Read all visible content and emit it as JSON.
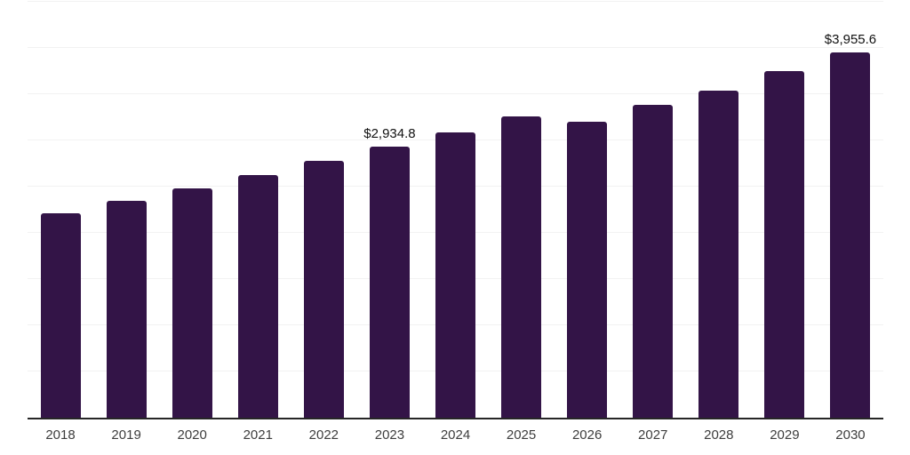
{
  "chart_data": {
    "type": "bar",
    "title": "",
    "xlabel": "",
    "ylabel": "",
    "categories": [
      "2018",
      "2019",
      "2020",
      "2021",
      "2022",
      "2023",
      "2024",
      "2025",
      "2026",
      "2027",
      "2028",
      "2029",
      "2030"
    ],
    "values": [
      2210,
      2350,
      2480,
      2625,
      2783,
      2934.8,
      3090,
      3262,
      3200,
      3383,
      3543,
      3753,
      3955.6
    ],
    "data_labels": [
      "",
      "",
      "",
      "",
      "",
      "$2,934.8",
      "",
      "",
      "",
      "",
      "",
      "",
      "$3,955.6"
    ],
    "ylim": [
      0,
      4500
    ],
    "gridline_step": 500,
    "grid": "horizontal-only",
    "legend": "none",
    "colors": {
      "bar": "#331447",
      "axis_line": "#262626",
      "gridline": "#f2f2f2",
      "tick_label": "#3d3d3d",
      "data_label": "#111111",
      "background": "#ffffff"
    }
  }
}
